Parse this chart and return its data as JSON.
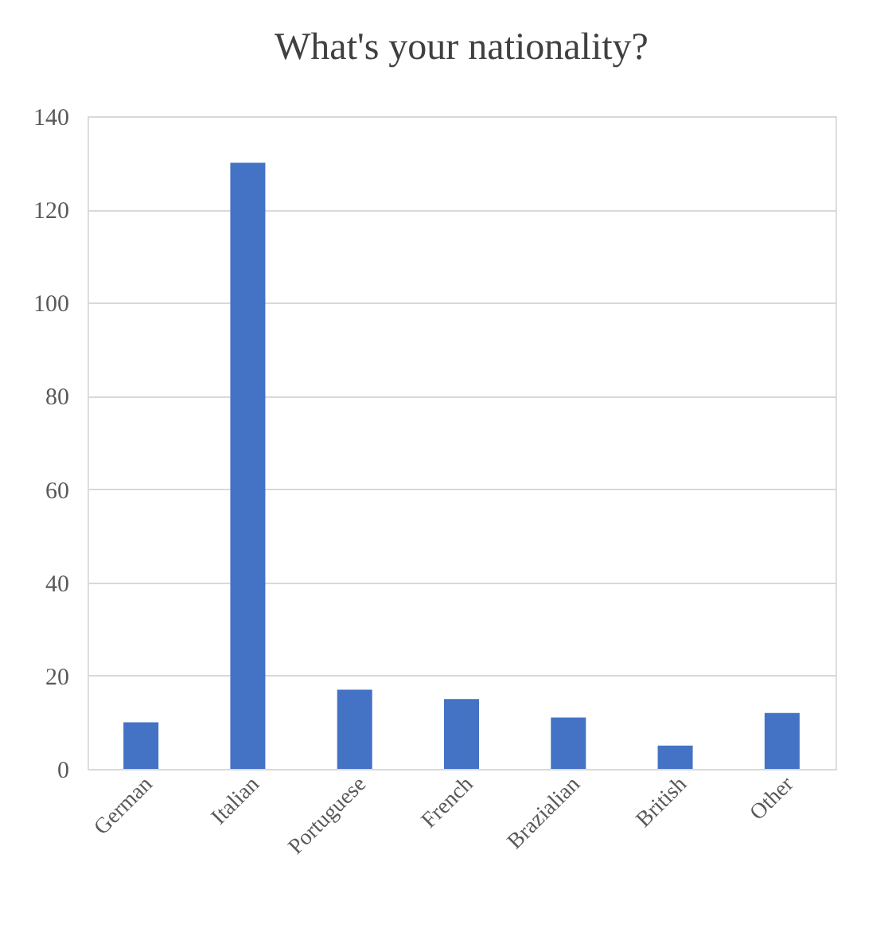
{
  "chart_data": {
    "type": "bar",
    "title": "What's your nationality?",
    "categories": [
      "German",
      "Italian",
      "Portuguese",
      "French",
      "Brazialian",
      "British",
      "Other"
    ],
    "values": [
      10,
      130,
      17,
      15,
      11,
      5,
      12
    ],
    "color": "#4472c4",
    "ylim": [
      0,
      140
    ],
    "yticks": [
      0,
      20,
      40,
      60,
      80,
      100,
      120,
      140
    ],
    "grid": "y"
  }
}
